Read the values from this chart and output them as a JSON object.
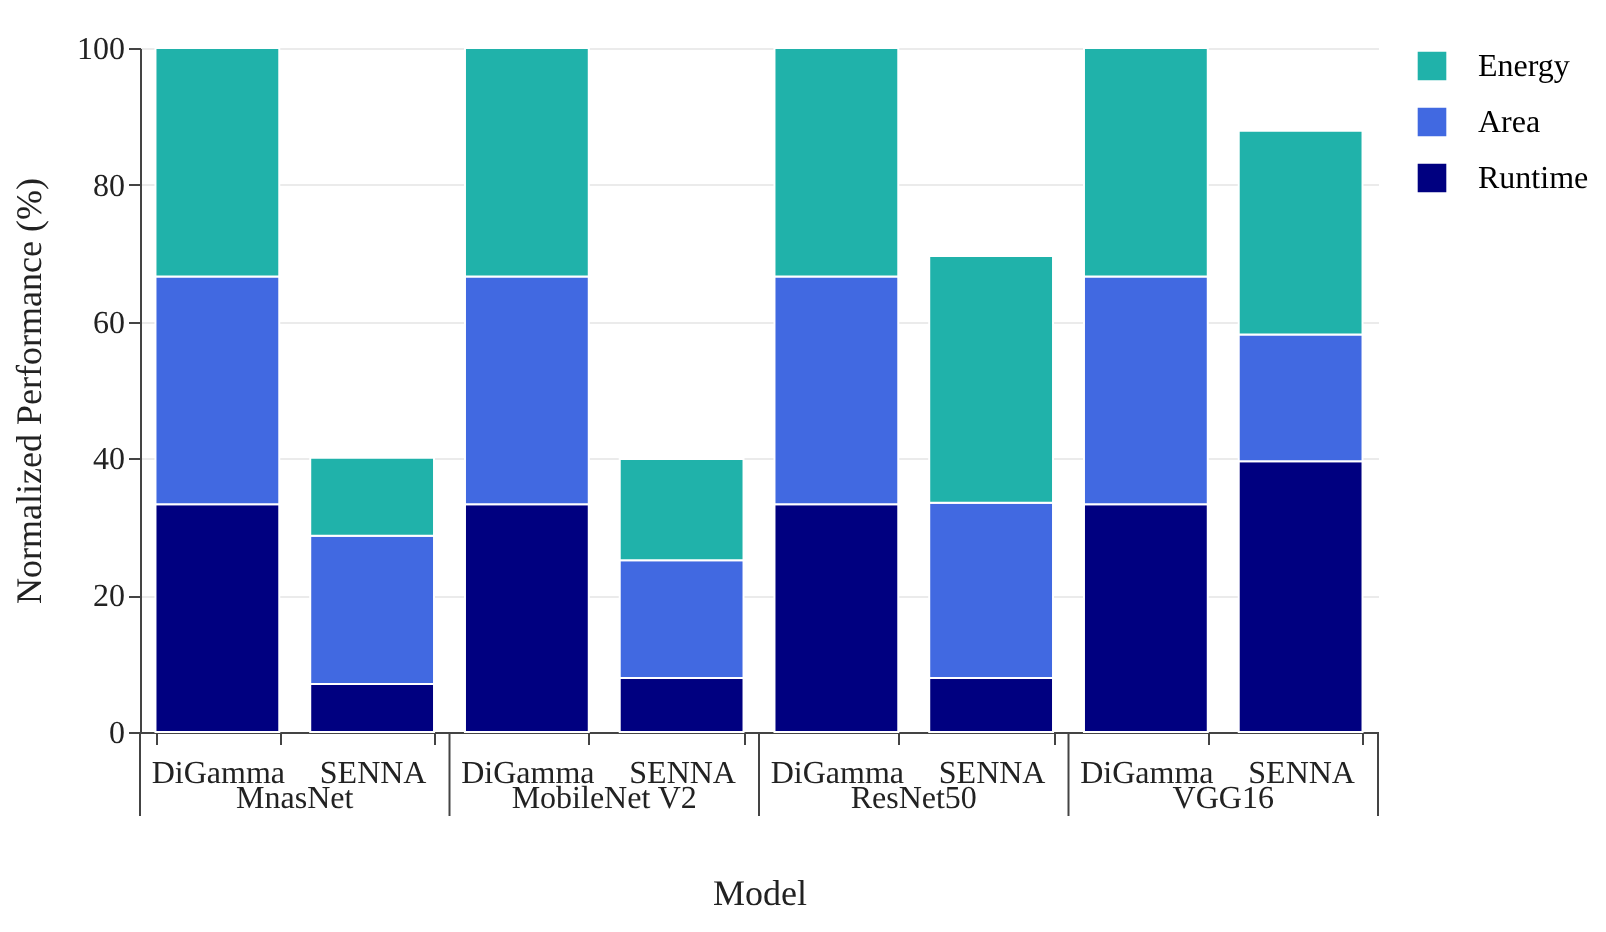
{
  "chart_data": {
    "type": "bar",
    "stacked": true,
    "xlabel": "Model",
    "ylabel": "Normalized Performance (%)",
    "categories": [
      "DiGamma",
      "SENNA",
      "DiGamma",
      "SENNA",
      "DiGamma",
      "SENNA",
      "DiGamma",
      "SENNA"
    ],
    "annotations": [
      "MnasNet",
      "MobileNet V2",
      "ResNet50",
      "VGG16"
    ],
    "series": [
      {
        "name": "Runtime",
        "color": "#000080",
        "values": [
          33.3,
          7.0,
          33.3,
          7.9,
          33.3,
          7.9,
          33.3,
          39.6
        ]
      },
      {
        "name": "Area",
        "color": "#4169e1",
        "values": [
          33.3,
          21.7,
          33.3,
          17.2,
          33.3,
          25.6,
          33.3,
          18.5
        ]
      },
      {
        "name": "Energy",
        "color": "#20b2aa",
        "values": [
          33.4,
          11.4,
          33.4,
          14.8,
          33.4,
          36.1,
          33.4,
          29.8
        ]
      }
    ],
    "ylim": [
      0,
      100
    ],
    "yticks": [
      0,
      20,
      40,
      60,
      80,
      100
    ],
    "grid": "y",
    "legend": "top right"
  }
}
